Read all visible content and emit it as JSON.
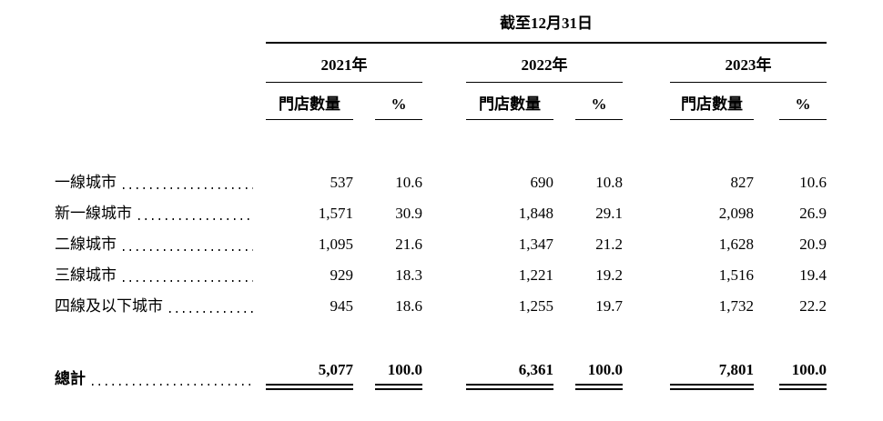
{
  "table": {
    "title": "截至12月31日",
    "years": [
      {
        "label": "2021年"
      },
      {
        "label": "2022年"
      },
      {
        "label": "2023年"
      }
    ],
    "subheaders": {
      "stores": "門店數量",
      "pct": "%"
    },
    "rows": [
      {
        "label": "一線城市",
        "values": [
          "537",
          "10.6",
          "690",
          "10.8",
          "827",
          "10.6"
        ]
      },
      {
        "label": "新一線城市",
        "values": [
          "1,571",
          "30.9",
          "1,848",
          "29.1",
          "2,098",
          "26.9"
        ]
      },
      {
        "label": "二線城市",
        "values": [
          "1,095",
          "21.6",
          "1,347",
          "21.2",
          "1,628",
          "20.9"
        ]
      },
      {
        "label": "三線城市",
        "values": [
          "929",
          "18.3",
          "1,221",
          "19.2",
          "1,516",
          "19.4"
        ]
      },
      {
        "label": "四線及以下城市",
        "values": [
          "945",
          "18.6",
          "1,255",
          "19.7",
          "1,732",
          "22.2"
        ]
      }
    ],
    "total": {
      "label": "總計",
      "values": [
        "5,077",
        "100.0",
        "6,361",
        "100.0",
        "7,801",
        "100.0"
      ]
    }
  }
}
